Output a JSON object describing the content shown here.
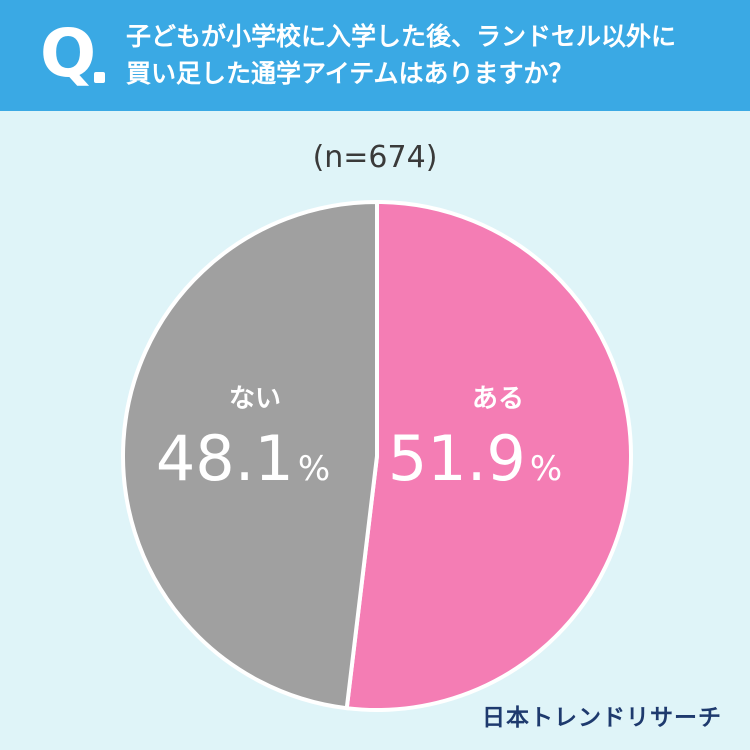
{
  "header": {
    "q_mark": "Q",
    "question_line1": "子どもが小学校に入学した後、ランドセル以外に",
    "question_line2": "買い足した通学アイテムはありますか？"
  },
  "sample_label": "(n=674)",
  "colors": {
    "header_bg": "#3aa9e4",
    "background": "#dff4f8",
    "yes": "#f47db4",
    "no": "#a0a0a0"
  },
  "chart_data": {
    "type": "pie",
    "slices": [
      {
        "label": "ある",
        "value": 51.9,
        "display": "51.9",
        "unit": "%",
        "color": "#f47db4"
      },
      {
        "label": "ない",
        "value": 48.1,
        "display": "48.1",
        "unit": "%",
        "color": "#a0a0a0"
      }
    ]
  },
  "brand": "日本トレンドリサーチ"
}
